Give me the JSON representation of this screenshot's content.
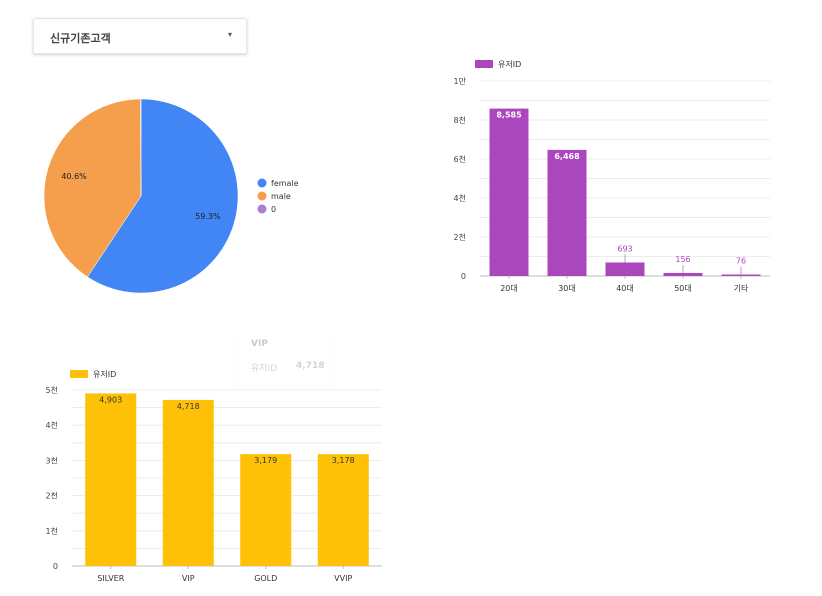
{
  "filter": {
    "selected": "신규기존고객",
    "caret": "▾"
  },
  "colors": {
    "female": "#4285f4",
    "male": "#f59e4c",
    "zero": "#a97fd6",
    "purple": "#ab47bc",
    "gold": "#ffc107",
    "grid": "#e6e6e6",
    "axis": "#bdbdbd",
    "text": "#333333"
  },
  "tooltip": {
    "title": "VIP",
    "key": "유저ID",
    "value": "4,718"
  },
  "chart_data": [
    {
      "type": "pie",
      "labels": [
        "female",
        "male",
        "0"
      ],
      "values": [
        59.3,
        40.6,
        0.1
      ],
      "value_labels": [
        "59.3%",
        "40.6%",
        ""
      ],
      "legend_position": "right"
    },
    {
      "type": "bar",
      "series": [
        {
          "name": "유저ID",
          "values": [
            8585,
            6468,
            693,
            156,
            76
          ]
        }
      ],
      "categories": [
        "20대",
        "30대",
        "40대",
        "50대",
        "기타"
      ],
      "value_labels": [
        "8,585",
        "6,468",
        "693",
        "156",
        "76"
      ],
      "yticks": [
        "0",
        "2천",
        "4천",
        "6천",
        "8천",
        "1만"
      ],
      "ylim": [
        0,
        10000
      ],
      "grid": true,
      "legend_position": "top-left"
    },
    {
      "type": "bar",
      "series": [
        {
          "name": "유저ID",
          "values": [
            4903,
            4718,
            3179,
            3178
          ]
        }
      ],
      "categories": [
        "SILVER",
        "VIP",
        "GOLD",
        "VVIP"
      ],
      "value_labels": [
        "4,903",
        "4,718",
        "3,179",
        "3,178"
      ],
      "yticks": [
        "0",
        "1천",
        "2천",
        "3천",
        "4천",
        "5천"
      ],
      "ylim": [
        0,
        5000
      ],
      "grid": true,
      "legend_position": "top-left"
    }
  ]
}
